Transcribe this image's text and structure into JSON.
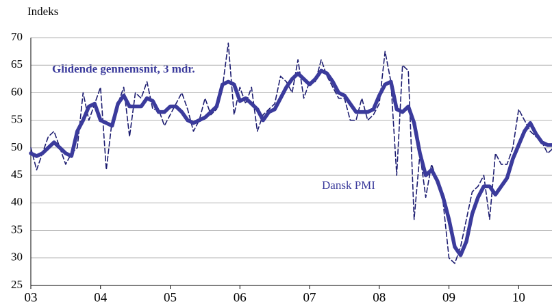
{
  "chart_data": {
    "type": "line",
    "y_label": "Indeks",
    "annotations": [
      "Glidende gennemsnit, 3 mdr.",
      "Dansk PMI"
    ],
    "categories": [
      "03",
      null,
      null,
      null,
      null,
      null,
      null,
      null,
      null,
      null,
      null,
      null,
      "04",
      null,
      null,
      null,
      null,
      null,
      null,
      null,
      null,
      null,
      null,
      null,
      "05",
      null,
      null,
      null,
      null,
      null,
      null,
      null,
      null,
      null,
      null,
      null,
      "06",
      null,
      null,
      null,
      null,
      null,
      null,
      null,
      null,
      null,
      null,
      null,
      "07",
      null,
      null,
      null,
      null,
      null,
      null,
      null,
      null,
      null,
      null,
      null,
      "08",
      null,
      null,
      null,
      null,
      null,
      null,
      null,
      null,
      null,
      null,
      null,
      "09",
      null,
      null,
      null,
      null,
      null,
      null,
      null,
      null,
      null,
      null,
      null,
      "10",
      null,
      null,
      null,
      null,
      null,
      null
    ],
    "series": [
      {
        "name": "Glidende gennemsnit, 3 mdr.",
        "color": "#3b3b9c",
        "style": "solid",
        "values": [
          49,
          48.5,
          49,
          50,
          51,
          50,
          49,
          48.5,
          53,
          55,
          57.5,
          58,
          55,
          54.5,
          54,
          58,
          59.5,
          57.5,
          57.5,
          57.5,
          59,
          58.5,
          56.5,
          56.5,
          57.5,
          57.5,
          56.5,
          55,
          54.5,
          55,
          55.5,
          56.5,
          57.5,
          61.5,
          62,
          61.5,
          58.5,
          59,
          58,
          57,
          55,
          56.5,
          57,
          59,
          61,
          62.5,
          63.5,
          62.5,
          61.5,
          62.5,
          64,
          63.5,
          62,
          60,
          59.5,
          58,
          56.5,
          56.5,
          56.5,
          57,
          59.5,
          61.5,
          62,
          57,
          56.5,
          57.5,
          54.5,
          49,
          45,
          46,
          44,
          41,
          37,
          32,
          30.5,
          33,
          38,
          41,
          43,
          43,
          41.5,
          43,
          44.5,
          48,
          50.5,
          53,
          54.5,
          52.5,
          51,
          50.5,
          50.5
        ]
      },
      {
        "name": "Dansk PMI",
        "color": "#1c1c70",
        "style": "dashed",
        "values": [
          50,
          46,
          49,
          52,
          53,
          50,
          47,
          49,
          50,
          60,
          55,
          58,
          61,
          46,
          55,
          58,
          61,
          52,
          60,
          59,
          62,
          57,
          57,
          54,
          56,
          58,
          60,
          57,
          53,
          55,
          59,
          56,
          57,
          61,
          69,
          56,
          61,
          58,
          61,
          53,
          56,
          57,
          58,
          63,
          62,
          60,
          66,
          59,
          62,
          62,
          66,
          63,
          61,
          59,
          59,
          55,
          55,
          59,
          55,
          56,
          58,
          67.5,
          62,
          45,
          65,
          64,
          37,
          49,
          41,
          47,
          44,
          40,
          30,
          29,
          32,
          37,
          42,
          43,
          45,
          37,
          49,
          47,
          47,
          50,
          57,
          55,
          53,
          52,
          51,
          49,
          50
        ]
      }
    ],
    "ylim": [
      25,
      70
    ],
    "yticks": [
      25,
      30,
      35,
      40,
      45,
      50,
      55,
      60,
      65,
      70
    ],
    "grid": true
  }
}
